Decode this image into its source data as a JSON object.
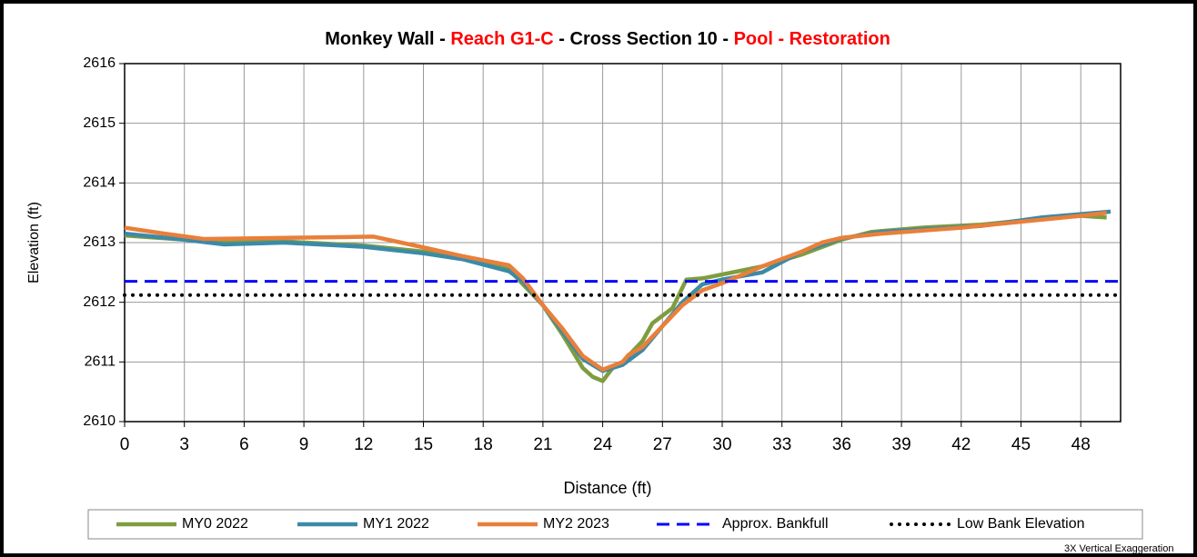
{
  "chart_data": {
    "type": "line",
    "title_parts": [
      {
        "text": "Monkey Wall - ",
        "color": "#000000"
      },
      {
        "text": "Reach G1-C",
        "color": "#ff0000"
      },
      {
        "text": " - Cross Section 10 - ",
        "color": "#000000"
      },
      {
        "text": "Pool - Restoration",
        "color": "#ff0000"
      }
    ],
    "x_label": "Distance (ft)",
    "y_label": "Elevation (ft)",
    "annotation": "3X Vertical Exaggeration",
    "xlim": [
      0,
      50
    ],
    "xticks": [
      0,
      3,
      6,
      9,
      12,
      15,
      18,
      21,
      24,
      27,
      30,
      33,
      36,
      39,
      42,
      45,
      48
    ],
    "ylim": [
      2610,
      2616
    ],
    "yticks": [
      2610,
      2611,
      2612,
      2613,
      2614,
      2615,
      2616
    ],
    "grid": true,
    "legend": "bottom",
    "series": [
      {
        "name": "MY0 2022",
        "color": "#7f9d3f",
        "dash": "solid",
        "x": [
          0,
          3,
          5,
          8,
          12,
          15,
          17,
          19.3,
          20,
          21,
          22,
          23,
          23.5,
          24,
          24.5,
          25,
          26,
          26.5,
          27.5,
          28.2,
          29,
          32,
          34,
          36,
          37.5,
          40,
          43,
          46,
          48,
          49.3
        ],
        "values": [
          2613.12,
          2613.05,
          2613.0,
          2613.02,
          2612.95,
          2612.85,
          2612.75,
          2612.55,
          2612.3,
          2611.95,
          2611.45,
          2610.9,
          2610.75,
          2610.68,
          2610.9,
          2611.0,
          2611.35,
          2611.65,
          2611.9,
          2612.38,
          2612.4,
          2612.6,
          2612.8,
          2613.05,
          2613.18,
          2613.25,
          2613.3,
          2613.4,
          2613.45,
          2613.42
        ]
      },
      {
        "name": "MY1 2022",
        "color": "#3b8aa8",
        "dash": "solid",
        "x": [
          0,
          3,
          5,
          8,
          12,
          15,
          17,
          19.3,
          20,
          21,
          22,
          23,
          24,
          25,
          26,
          27,
          28,
          29,
          30,
          32,
          34,
          36,
          38,
          40,
          43,
          46,
          49.5
        ],
        "values": [
          2613.15,
          2613.05,
          2612.97,
          2613.0,
          2612.93,
          2612.82,
          2612.72,
          2612.52,
          2612.35,
          2611.95,
          2611.5,
          2611.05,
          2610.85,
          2610.95,
          2611.2,
          2611.6,
          2612.0,
          2612.3,
          2612.38,
          2612.5,
          2612.85,
          2613.07,
          2613.18,
          2613.22,
          2613.28,
          2613.42,
          2613.52
        ]
      },
      {
        "name": "MY2 2023",
        "color": "#e97f3a",
        "dash": "solid",
        "x": [
          0,
          2,
          4,
          8,
          12.5,
          15,
          17,
          19.3,
          20,
          21,
          22,
          23,
          24,
          25,
          25.3,
          26,
          27,
          28,
          29,
          30,
          32,
          34,
          35,
          36,
          38,
          42,
          45,
          48,
          49.3
        ],
        "values": [
          2613.25,
          2613.15,
          2613.06,
          2613.08,
          2613.1,
          2612.92,
          2612.77,
          2612.62,
          2612.4,
          2611.95,
          2611.55,
          2611.1,
          2610.87,
          2611.0,
          2611.12,
          2611.25,
          2611.6,
          2611.95,
          2612.2,
          2612.32,
          2612.6,
          2612.85,
          2613.0,
          2613.08,
          2613.15,
          2613.25,
          2613.35,
          2613.45,
          2613.5
        ]
      },
      {
        "name": "Approx. Bankfull",
        "color": "#0000ff",
        "dash": "dashed",
        "x": [
          0,
          50
        ],
        "values": [
          2612.35,
          2612.35
        ]
      },
      {
        "name": "Low Bank Elevation",
        "color": "#000000",
        "dash": "dotted",
        "x": [
          0,
          50
        ],
        "values": [
          2612.12,
          2612.12
        ]
      }
    ]
  }
}
